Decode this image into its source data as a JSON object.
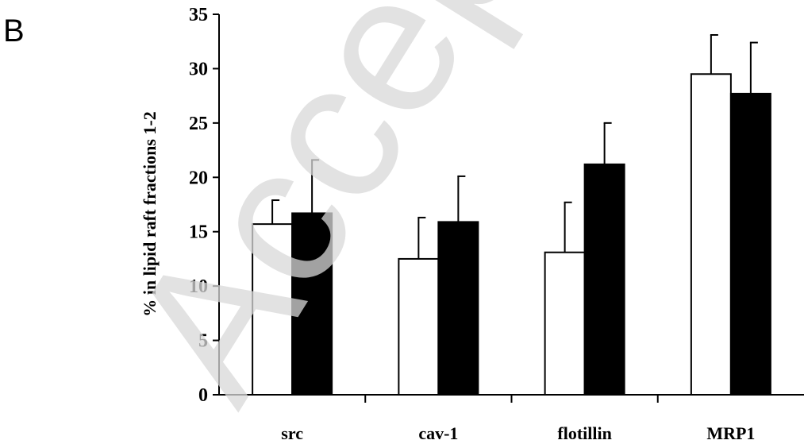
{
  "panel_label": "B",
  "watermark": "Accepted Ma",
  "chart_data": {
    "type": "bar",
    "ylabel": "% in lipid raft fractions 1-2",
    "xlabel": "",
    "ylim": [
      0,
      35
    ],
    "yticks": [
      0,
      5,
      10,
      15,
      20,
      25,
      30,
      35
    ],
    "categories": [
      "src",
      "cav-1",
      "flotillin",
      "MRP1"
    ],
    "series": [
      {
        "fill": "#ffffff",
        "values": [
          15.7,
          12.5,
          13.1,
          29.5
        ],
        "errors": [
          2.2,
          3.8,
          4.6,
          3.6
        ]
      },
      {
        "fill": "#000000",
        "values": [
          16.7,
          15.9,
          21.2,
          27.7
        ],
        "errors": [
          4.9,
          4.2,
          3.8,
          4.7
        ]
      }
    ],
    "grid": false,
    "legend": "none"
  },
  "colors": {
    "axis": "#000000",
    "bar_outline": "#000000",
    "watermark": "#d9d9d9"
  }
}
